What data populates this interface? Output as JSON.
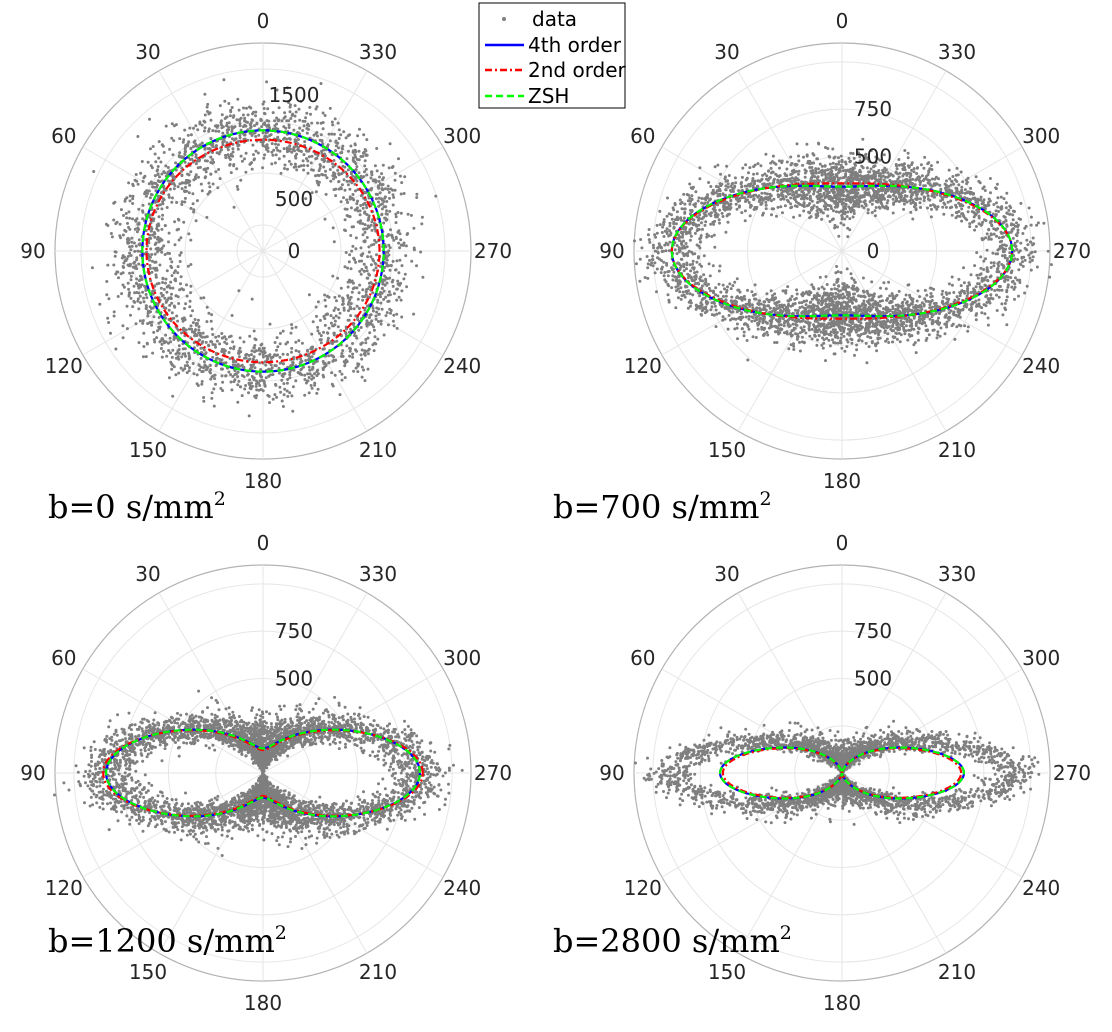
{
  "legend": {
    "entries": [
      {
        "label": "data",
        "style": "dot",
        "color": "#808080"
      },
      {
        "label": "4th order",
        "style": "solid",
        "color": "#0000ff"
      },
      {
        "label": "2nd order",
        "style": "dashdot",
        "color": "#ff0000"
      },
      {
        "label": "ZSH",
        "style": "dashed",
        "color": "#00ff00"
      }
    ]
  },
  "chart_data": [
    {
      "type": "scatter",
      "coordinate_system": "polar",
      "caption_text": "b=0 s/mm",
      "caption_sup": "2",
      "theta_direction": "counterclockwise",
      "theta_zero": "top",
      "theta_ticks": [
        "0",
        "30",
        "60",
        "90",
        "120",
        "150",
        "180",
        "210",
        "240",
        "270",
        "300",
        "330"
      ],
      "r_ticks": [
        {
          "value": 0,
          "label": "0"
        },
        {
          "value": 500,
          "label": "500"
        },
        {
          "value": 1500,
          "label": "1500"
        }
      ],
      "rlim": [
        0,
        2000
      ],
      "grid": true,
      "series": [
        {
          "name": "data",
          "kind": "scatter",
          "points": 2600,
          "model": {
            "a": 1160,
            "b": 1160,
            "pinch": 0
          },
          "noise": 170
        },
        {
          "name": "4th order",
          "kind": "curve",
          "model": {
            "a": 1160,
            "b": 1160,
            "pinch": 0
          }
        },
        {
          "name": "2nd order",
          "kind": "curve",
          "model": {
            "a": 1120,
            "b": 1070,
            "pinch": 0
          }
        },
        {
          "name": "ZSH",
          "kind": "curve",
          "model": {
            "a": 1160,
            "b": 1160,
            "pinch": 0
          }
        }
      ]
    },
    {
      "type": "scatter",
      "coordinate_system": "polar",
      "caption_text": "b=700 s/mm",
      "caption_sup": "2",
      "theta_direction": "counterclockwise",
      "theta_zero": "top",
      "theta_ticks": [
        "0",
        "30",
        "60",
        "90",
        "120",
        "150",
        "180",
        "210",
        "240",
        "270",
        "300",
        "330"
      ],
      "r_ticks": [
        {
          "value": 0,
          "label": "0"
        },
        {
          "value": 500,
          "label": "500"
        },
        {
          "value": 750,
          "label": "750"
        }
      ],
      "rlim": [
        0,
        1100
      ],
      "grid": true,
      "series": [
        {
          "name": "data",
          "kind": "scatter",
          "points": 4200,
          "model": {
            "a": 900,
            "b": 400,
            "pinch": 0.14
          },
          "noise": 85
        },
        {
          "name": "4th order",
          "kind": "curve",
          "model": {
            "a": 900,
            "b": 405,
            "pinch": 0.16
          }
        },
        {
          "name": "2nd order",
          "kind": "curve",
          "model": {
            "a": 900,
            "b": 385,
            "pinch": 0.07
          }
        },
        {
          "name": "ZSH",
          "kind": "curve",
          "model": {
            "a": 900,
            "b": 405,
            "pinch": 0.16
          }
        }
      ]
    },
    {
      "type": "scatter",
      "coordinate_system": "polar",
      "caption_text": "b=1200 s/mm",
      "caption_sup": "2",
      "theta_direction": "counterclockwise",
      "theta_zero": "top",
      "theta_ticks": [
        "0",
        "30",
        "60",
        "90",
        "120",
        "150",
        "180",
        "210",
        "240",
        "270",
        "300",
        "330"
      ],
      "r_ticks": [
        {
          "value": 500,
          "label": "500"
        },
        {
          "value": 750,
          "label": "750"
        }
      ],
      "rlim": [
        0,
        1100
      ],
      "grid": true,
      "series": [
        {
          "name": "data",
          "kind": "scatter",
          "points": 5200,
          "model": {
            "a": 830,
            "b": 325,
            "pinch": 0.6
          },
          "noise": 80
        },
        {
          "name": "4th order",
          "kind": "curve",
          "model": {
            "a": 830,
            "b": 325,
            "pinch": 0.6
          }
        },
        {
          "name": "2nd order",
          "kind": "curve",
          "model": {
            "a": 845,
            "b": 320,
            "pinch": 0.62
          }
        },
        {
          "name": "ZSH",
          "kind": "curve",
          "model": {
            "a": 830,
            "b": 325,
            "pinch": 0.6
          }
        }
      ]
    },
    {
      "type": "scatter",
      "coordinate_system": "polar",
      "caption_text": "b=2800 s/mm",
      "caption_sup": "2",
      "theta_direction": "counterclockwise",
      "theta_zero": "top",
      "theta_ticks": [
        "0",
        "30",
        "60",
        "90",
        "120",
        "150",
        "180",
        "210",
        "240",
        "270",
        "300",
        "330"
      ],
      "r_ticks": [
        {
          "value": 500,
          "label": "500"
        },
        {
          "value": 750,
          "label": "750"
        }
      ],
      "rlim": [
        0,
        1100
      ],
      "grid": true,
      "series": [
        {
          "name": "data",
          "kind": "scatter",
          "points": 4200,
          "model": {
            "a": 900,
            "b": 215,
            "pinch": 0.95
          },
          "noise": 75
        },
        {
          "name": "4th order",
          "kind": "curve",
          "model": {
            "a": 645,
            "b": 195,
            "pinch": 1.0
          }
        },
        {
          "name": "2nd order",
          "kind": "curve",
          "model": {
            "a": 630,
            "b": 190,
            "pinch": 1.0
          }
        },
        {
          "name": "ZSH",
          "kind": "curve",
          "model": {
            "a": 645,
            "b": 195,
            "pinch": 1.0
          }
        }
      ]
    }
  ]
}
